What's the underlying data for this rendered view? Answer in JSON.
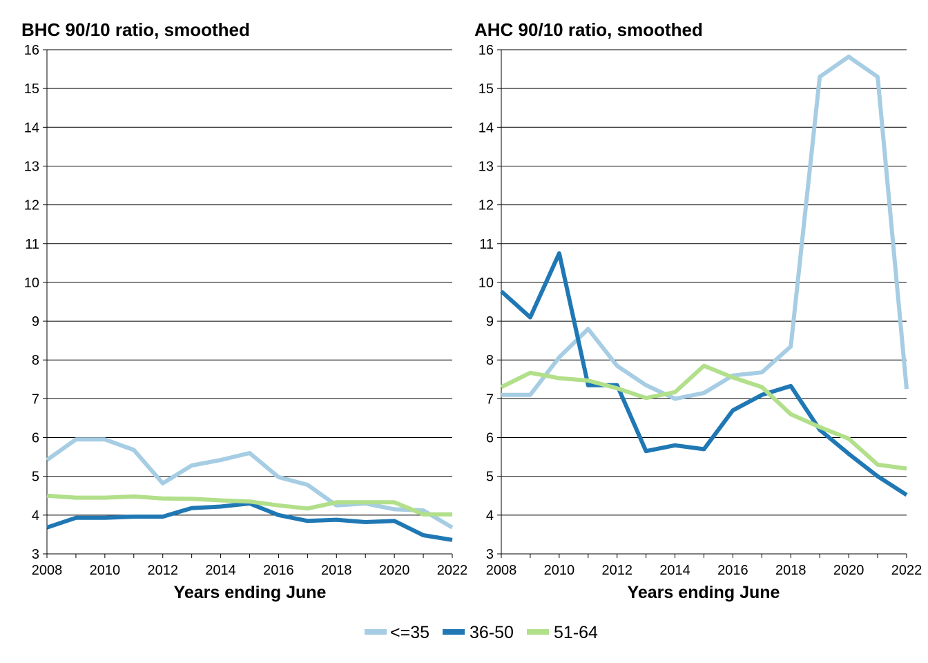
{
  "legend": [
    {
      "label": "<=35",
      "color": "#a6cde3"
    },
    {
      "label": "36-50",
      "color": "#1f78b4"
    },
    {
      "label": "51-64",
      "color": "#b2df8a"
    }
  ],
  "chart_data": [
    {
      "type": "line",
      "title": "BHC 90/10 ratio, smoothed",
      "xlabel": "Years ending June",
      "ylabel": "",
      "x": [
        2008,
        2009,
        2010,
        2011,
        2012,
        2013,
        2014,
        2015,
        2016,
        2017,
        2018,
        2019,
        2020,
        2021,
        2022
      ],
      "xticks": [
        2008,
        2010,
        2012,
        2014,
        2016,
        2018,
        2020,
        2022
      ],
      "xlim": [
        2008,
        2022
      ],
      "ylim": [
        3,
        16
      ],
      "yticks": [
        3,
        4,
        5,
        6,
        7,
        8,
        9,
        10,
        11,
        12,
        13,
        14,
        15,
        16
      ],
      "grid": "horizontal",
      "series": [
        {
          "name": "<=35",
          "color": "#a6cde3",
          "values": [
            5.42,
            5.95,
            5.95,
            5.68,
            4.82,
            5.28,
            5.42,
            5.6,
            4.98,
            4.78,
            4.25,
            4.3,
            4.15,
            4.12,
            3.68
          ]
        },
        {
          "name": "36-50",
          "color": "#1f78b4",
          "values": [
            3.68,
            3.93,
            3.93,
            3.96,
            3.96,
            4.18,
            4.22,
            4.3,
            4.0,
            3.85,
            3.88,
            3.82,
            3.85,
            3.48,
            3.36
          ]
        },
        {
          "name": "51-64",
          "color": "#b2df8a",
          "values": [
            4.5,
            4.45,
            4.45,
            4.48,
            4.43,
            4.42,
            4.38,
            4.35,
            4.25,
            4.17,
            4.33,
            4.33,
            4.33,
            4.02,
            4.02
          ]
        }
      ]
    },
    {
      "type": "line",
      "title": "AHC 90/10 ratio, smoothed",
      "xlabel": "Years ending June",
      "ylabel": "",
      "x": [
        2008,
        2009,
        2010,
        2011,
        2012,
        2013,
        2014,
        2015,
        2016,
        2017,
        2018,
        2019,
        2020,
        2021,
        2022
      ],
      "xticks": [
        2008,
        2010,
        2012,
        2014,
        2016,
        2018,
        2020,
        2022
      ],
      "xlim": [
        2008,
        2022
      ],
      "ylim": [
        3,
        16
      ],
      "yticks": [
        3,
        4,
        5,
        6,
        7,
        8,
        9,
        10,
        11,
        12,
        13,
        14,
        15,
        16
      ],
      "grid": "horizontal",
      "series": [
        {
          "name": "<=35",
          "color": "#a6cde3",
          "values": [
            7.1,
            7.1,
            8.07,
            8.8,
            7.85,
            7.35,
            7.0,
            7.15,
            7.6,
            7.68,
            8.35,
            15.3,
            15.82,
            15.3,
            7.25
          ]
        },
        {
          "name": "36-50",
          "color": "#1f78b4",
          "values": [
            9.77,
            9.1,
            10.75,
            7.35,
            7.35,
            5.65,
            5.8,
            5.7,
            6.7,
            7.1,
            7.33,
            6.2,
            5.58,
            5.0,
            4.52
          ]
        },
        {
          "name": "51-64",
          "color": "#b2df8a",
          "values": [
            7.3,
            7.67,
            7.53,
            7.47,
            7.27,
            7.02,
            7.17,
            7.85,
            7.55,
            7.3,
            6.6,
            6.27,
            5.97,
            5.3,
            5.2
          ]
        }
      ]
    }
  ]
}
